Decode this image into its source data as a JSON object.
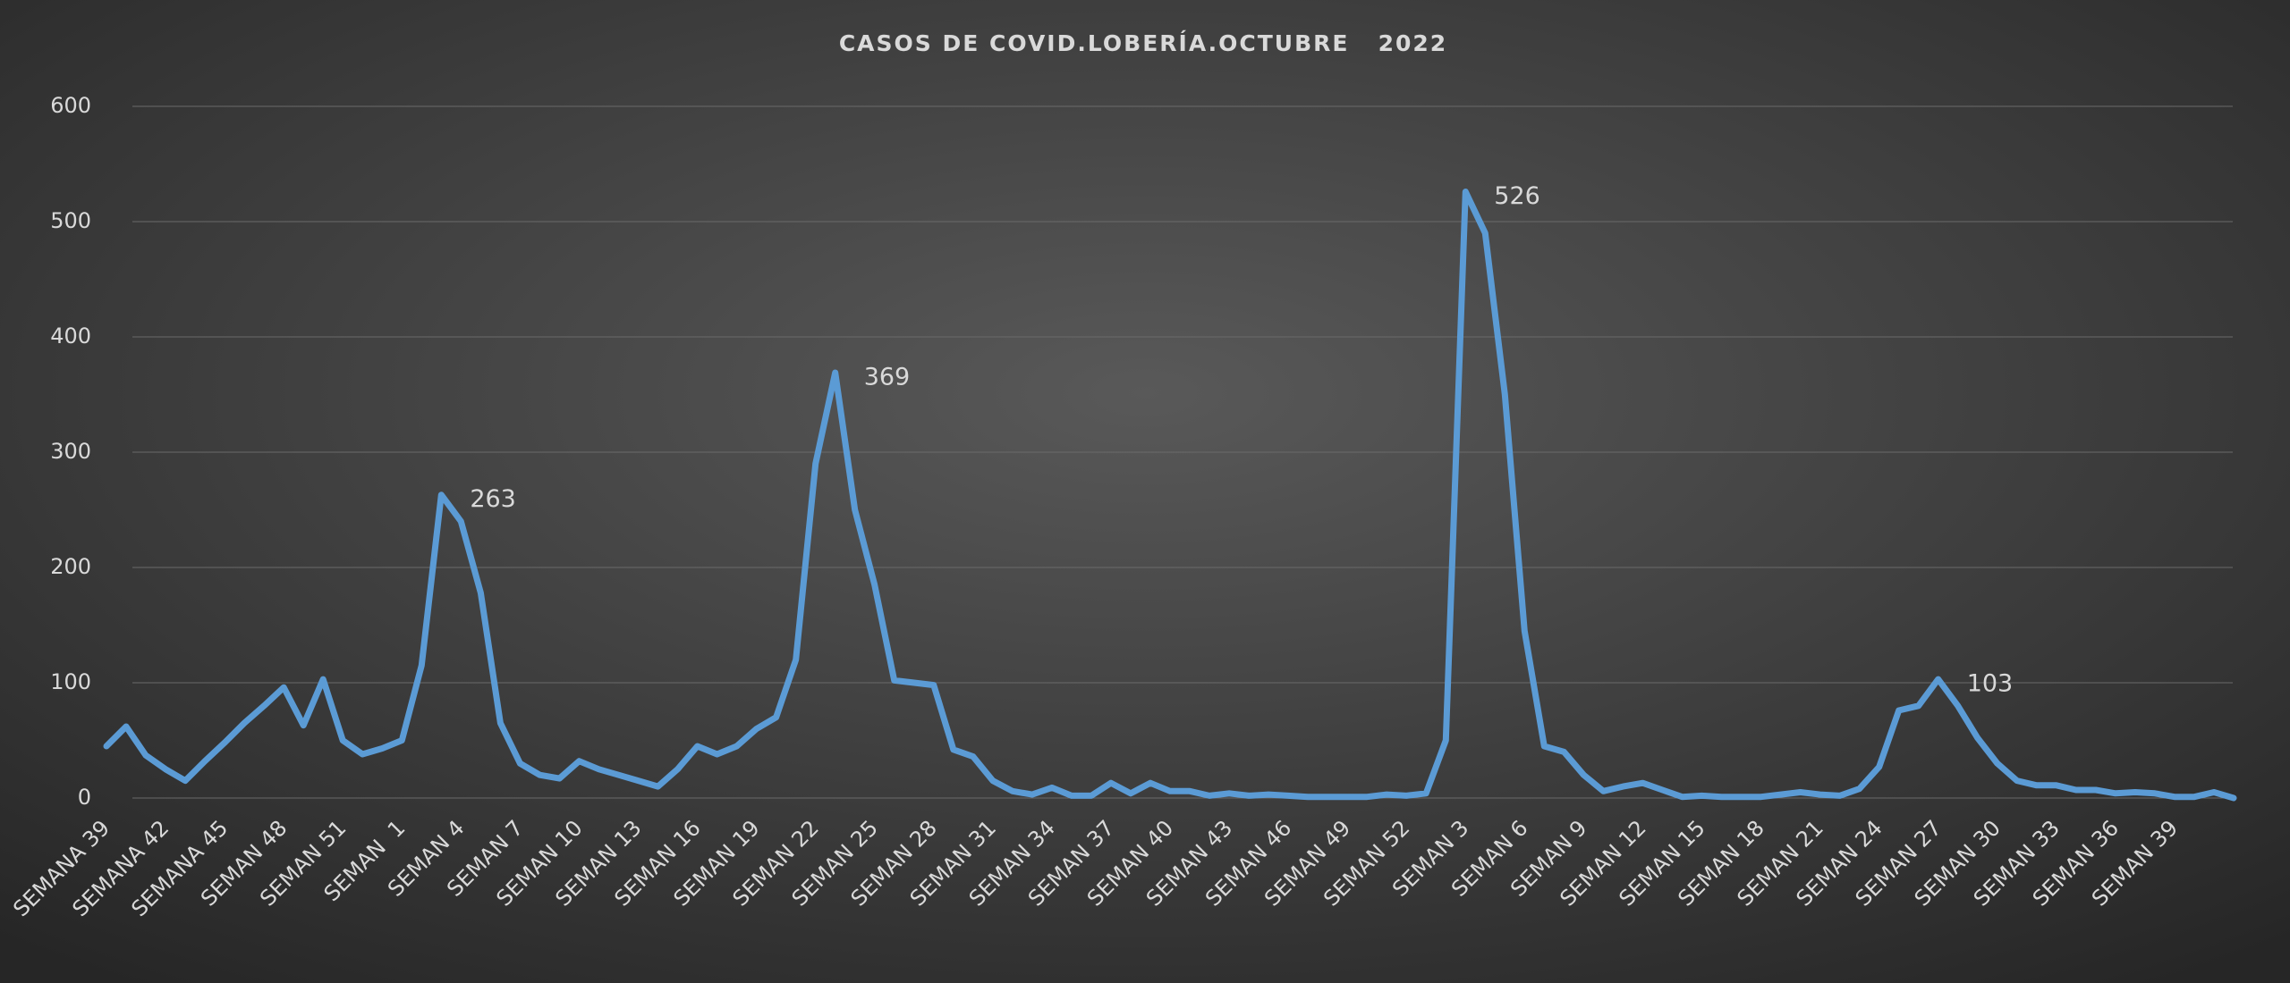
{
  "chart_data": {
    "type": "line",
    "title": "CASOS DE COVID.LOBERÍA.OCTUBRE   2022",
    "categories": [
      "SEMANA 39",
      null,
      null,
      "SEMANA 42",
      null,
      null,
      "SEMANA 45",
      null,
      null,
      "SEMAN 48",
      null,
      null,
      "SEMAN 51",
      null,
      null,
      "SEMAN  1",
      null,
      null,
      "SEMAN 4",
      null,
      null,
      "SEMAN 7",
      null,
      null,
      "SEMAN 10",
      null,
      null,
      "SEMAN 13",
      null,
      null,
      "SEMAN 16",
      null,
      null,
      "SEMAN 19",
      null,
      null,
      "SEMAN 22",
      null,
      null,
      "SEMAN 25",
      null,
      null,
      "SEMAN 28",
      null,
      null,
      "SEMAN 31",
      null,
      null,
      "SEMAN 34",
      null,
      null,
      "SEMAN 37",
      null,
      null,
      "SEMAN 40",
      null,
      null,
      "SEMAN 43",
      null,
      null,
      "SEMAN 46",
      null,
      null,
      "SEMAN 49",
      null,
      null,
      "SEMAN 52",
      null,
      null,
      "SEMAN 3",
      null,
      null,
      "SEMAN 6",
      null,
      null,
      "SEMAN 9",
      null,
      null,
      "SEMAN 12",
      null,
      null,
      "SEMAN 15",
      null,
      null,
      "SEMAN 18",
      null,
      null,
      "SEMAN 21",
      null,
      null,
      "SEMAN 24",
      null,
      null,
      "SEMAN 27",
      null,
      null,
      "SEMAN 30",
      null,
      null,
      "SEMAN 33",
      null,
      null,
      "SEMAN 36",
      null,
      null,
      "SEMAN 39",
      null,
      null,
      null
    ],
    "series": [
      {
        "name": "Casos",
        "color": "#5b9bd5",
        "values": [
          45,
          62,
          37,
          25,
          15,
          32,
          48,
          65,
          80,
          96,
          63,
          103,
          50,
          38,
          43,
          50,
          115,
          263,
          240,
          178,
          65,
          30,
          20,
          17,
          32,
          25,
          20,
          15,
          10,
          25,
          45,
          38,
          45,
          60,
          70,
          120,
          290,
          369,
          250,
          185,
          102,
          100,
          98,
          42,
          36,
          15,
          6,
          3,
          9,
          2,
          2,
          13,
          4,
          13,
          6,
          6,
          2,
          4,
          2,
          3,
          2,
          1,
          1,
          1,
          1,
          3,
          2,
          4,
          50,
          526,
          490,
          350,
          145,
          45,
          40,
          20,
          6,
          10,
          13,
          7,
          1,
          2,
          1,
          1,
          1,
          3,
          5,
          3,
          2,
          8,
          27,
          76,
          80,
          103,
          80,
          52,
          30,
          15,
          11,
          11,
          7,
          7,
          4,
          5,
          4,
          1,
          1,
          5,
          0
        ]
      }
    ],
    "labeled_points": [
      17,
      37,
      69,
      93
    ],
    "ylim": [
      0,
      600
    ],
    "yticks": [
      0,
      100,
      200,
      300,
      400,
      500,
      600
    ],
    "grid": true
  }
}
